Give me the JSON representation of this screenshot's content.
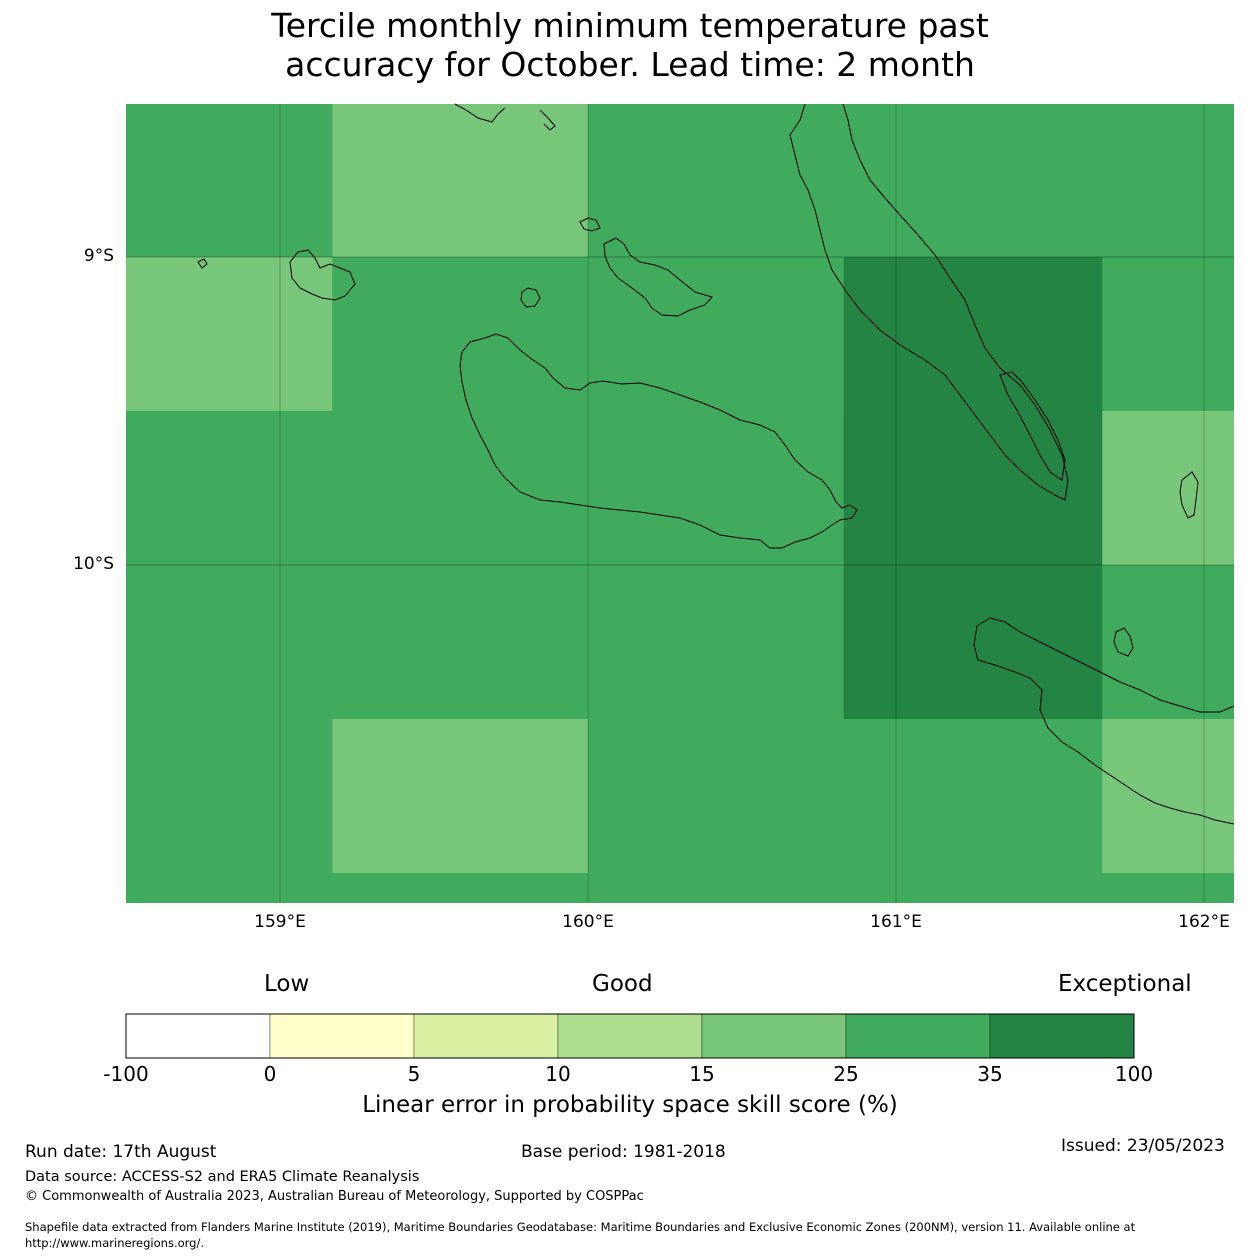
{
  "title": {
    "line1": "Tercile monthly minimum temperature past",
    "line2": "accuracy for October. Lead time: 2 month"
  },
  "map": {
    "lat_labels": [
      "9°S",
      "10°S"
    ],
    "lon_labels": [
      "159°E",
      "160°E",
      "161°E",
      "162°E"
    ],
    "grid_cells": [
      {
        "lon_from": 158.5,
        "lon_to": 159.17,
        "lat_from": -8.5,
        "lat_to": -9.0,
        "skill_class": "25-35"
      },
      {
        "lon_from": 159.17,
        "lon_to": 160.0,
        "lat_from": -8.5,
        "lat_to": -9.0,
        "skill_class": "15-25"
      },
      {
        "lon_from": 160.0,
        "lon_to": 162.1,
        "lat_from": -8.5,
        "lat_to": -9.0,
        "skill_class": "25-35"
      },
      {
        "lon_from": 158.5,
        "lon_to": 159.17,
        "lat_from": -9.0,
        "lat_to": -9.5,
        "skill_class": "15-25"
      },
      {
        "lon_from": 159.17,
        "lon_to": 160.83,
        "lat_from": -9.0,
        "lat_to": -9.5,
        "skill_class": "25-35"
      },
      {
        "lon_from": 160.83,
        "lon_to": 161.67,
        "lat_from": -9.0,
        "lat_to": -10.5,
        "skill_class": "35-100"
      },
      {
        "lon_from": 161.67,
        "lon_to": 162.1,
        "lat_from": -9.0,
        "lat_to": -9.5,
        "skill_class": "25-35"
      },
      {
        "lon_from": 158.5,
        "lon_to": 160.83,
        "lat_from": -9.5,
        "lat_to": -10.5,
        "skill_class": "25-35"
      },
      {
        "lon_from": 161.67,
        "lon_to": 162.1,
        "lat_from": -9.5,
        "lat_to": -10.0,
        "skill_class": "15-25"
      },
      {
        "lon_from": 161.67,
        "lon_to": 162.1,
        "lat_from": -10.0,
        "lat_to": -10.5,
        "skill_class": "25-35"
      },
      {
        "lon_from": 158.5,
        "lon_to": 159.17,
        "lat_from": -10.5,
        "lat_to": -11.0,
        "skill_class": "25-35"
      },
      {
        "lon_from": 159.17,
        "lon_to": 160.0,
        "lat_from": -10.5,
        "lat_to": -11.0,
        "skill_class": "15-25"
      },
      {
        "lon_from": 160.0,
        "lon_to": 161.67,
        "lat_from": -10.5,
        "lat_to": -11.0,
        "skill_class": "25-35"
      },
      {
        "lon_from": 161.67,
        "lon_to": 162.1,
        "lat_from": -10.5,
        "lat_to": -11.0,
        "skill_class": "15-25"
      }
    ]
  },
  "colorbar": {
    "category_labels": [
      "Low",
      "Good",
      "Exceptional"
    ],
    "ticks": [
      "-100",
      "0",
      "5",
      "10",
      "15",
      "25",
      "35",
      "100"
    ],
    "colors": [
      "#ffffff",
      "#ffffcc",
      "#d9f0a3",
      "#addd8e",
      "#78c679",
      "#41ab5d",
      "#238443"
    ],
    "title": "Linear error in probability space skill score (%)"
  },
  "footer": {
    "run_date": "Run date: 17th August",
    "base_period": "Base period: 1981-2018",
    "issued": "Issued: 23/05/2023",
    "data_source": "Data source: ACCESS-S2 and ERA5 Climate Reanalysis",
    "copyright": "© Commonwealth of Australia 2023, Australian Bureau of Meteorology, Supported by COSPPac",
    "shapefile_line1": "Shapefile data extracted from Flanders Marine Institute (2019), Maritime Boundaries Geodatabase: Maritime Boundaries and Exclusive Economic Zones (200NM), version 11. Available online at",
    "shapefile_line2": "http://www.marineregions.org/."
  }
}
